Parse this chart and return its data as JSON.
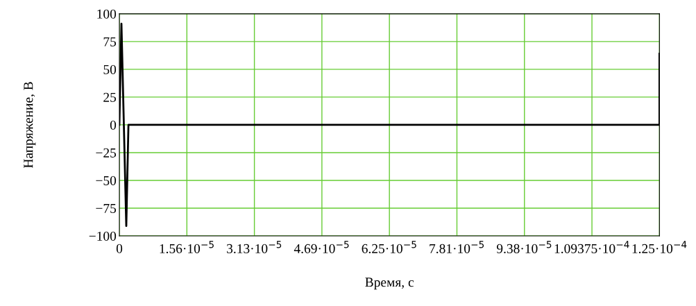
{
  "chart_data": {
    "type": "line",
    "xlabel": "Время, с",
    "ylabel": "Напряжение, В",
    "x": [
      0,
      4.8e-07,
      1.6e-06,
      2.1e-06,
      0.000125,
      0.000125
    ],
    "series": [
      {
        "color": "#000000",
        "values": [
          0,
          91,
          -91,
          0,
          0,
          64
        ]
      }
    ],
    "xlim": [
      0,
      0.000125
    ],
    "xticks": [
      {
        "value": 0,
        "label": "0"
      },
      {
        "value": 1.5625e-05,
        "label": "1.56·10$^{−5}$"
      },
      {
        "value": 3.125e-05,
        "label": "3.13·10$^{−5}$"
      },
      {
        "value": 4.6875e-05,
        "label": "4.69·10$^{−5}$"
      },
      {
        "value": 6.25e-05,
        "label": "6.25·10$^{−5}$"
      },
      {
        "value": 7.8125e-05,
        "label": "7.81·10$^{−5}$"
      },
      {
        "value": 9.375e-05,
        "label": "9.38·10$^{−5}$"
      },
      {
        "value": 0.000109375,
        "label": "1.09375·10$^{−4}$"
      },
      {
        "value": 0.000125,
        "label": "1.25·10$^{−4}$"
      }
    ],
    "ylim": [
      -100,
      100
    ],
    "yticks": [
      {
        "value": -100,
        "label": "−100"
      },
      {
        "value": -75,
        "label": "−75"
      },
      {
        "value": -50,
        "label": "−50"
      },
      {
        "value": -25,
        "label": "−25"
      },
      0,
      25,
      50,
      75,
      100
    ],
    "grid": true,
    "marker": "none",
    "line_style": "solid"
  }
}
